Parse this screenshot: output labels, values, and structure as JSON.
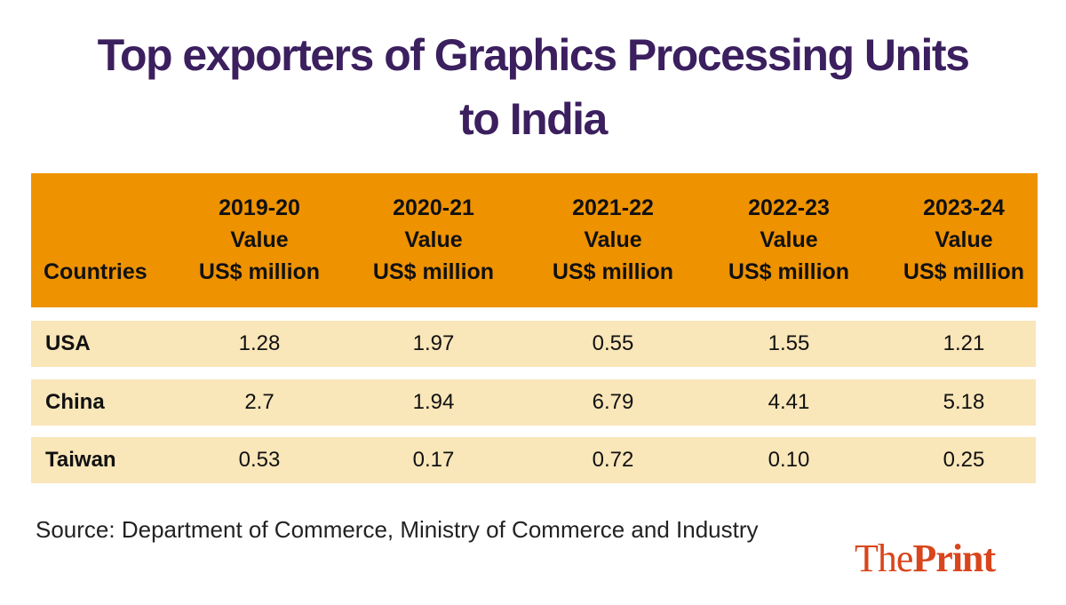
{
  "title_line1": "Top exporters of Graphics Processing Units",
  "title_line2": "to India",
  "chart_data": {
    "type": "table",
    "title": "Top exporters of Graphics Processing Units to India",
    "columns": [
      {
        "year": "2019-20",
        "l2": "Value",
        "l3": "US$ million"
      },
      {
        "year": "2020-21",
        "l2": "Value",
        "l3": "US$ million"
      },
      {
        "year": "2021-22",
        "l2": "Value",
        "l3": "US$ million"
      },
      {
        "year": "2022-23",
        "l2": "Value",
        "l3": "US$ million"
      },
      {
        "year": "2023-24",
        "l2": "Value",
        "l3": "US$ million"
      }
    ],
    "first_column_header": "Countries",
    "rows": [
      {
        "country": "USA",
        "values": [
          "1.28",
          "1.97",
          "0.55",
          "1.55",
          "1.21"
        ]
      },
      {
        "country": "China",
        "values": [
          "2.7",
          "1.94",
          "6.79",
          "4.41",
          "5.18"
        ]
      },
      {
        "country": "Taiwan",
        "values": [
          "0.53",
          "0.17",
          "0.72",
          "0.10",
          "0.25"
        ]
      }
    ]
  },
  "source": "Source: Department of Commerce, Ministry of Commerce and Industry",
  "logo": {
    "part1": "The",
    "part2": "Print"
  },
  "colors": {
    "title": "#3b1f5e",
    "header_bg": "#ee9200",
    "row_bg": "#f9e6b9",
    "logo": "#d9451c"
  }
}
